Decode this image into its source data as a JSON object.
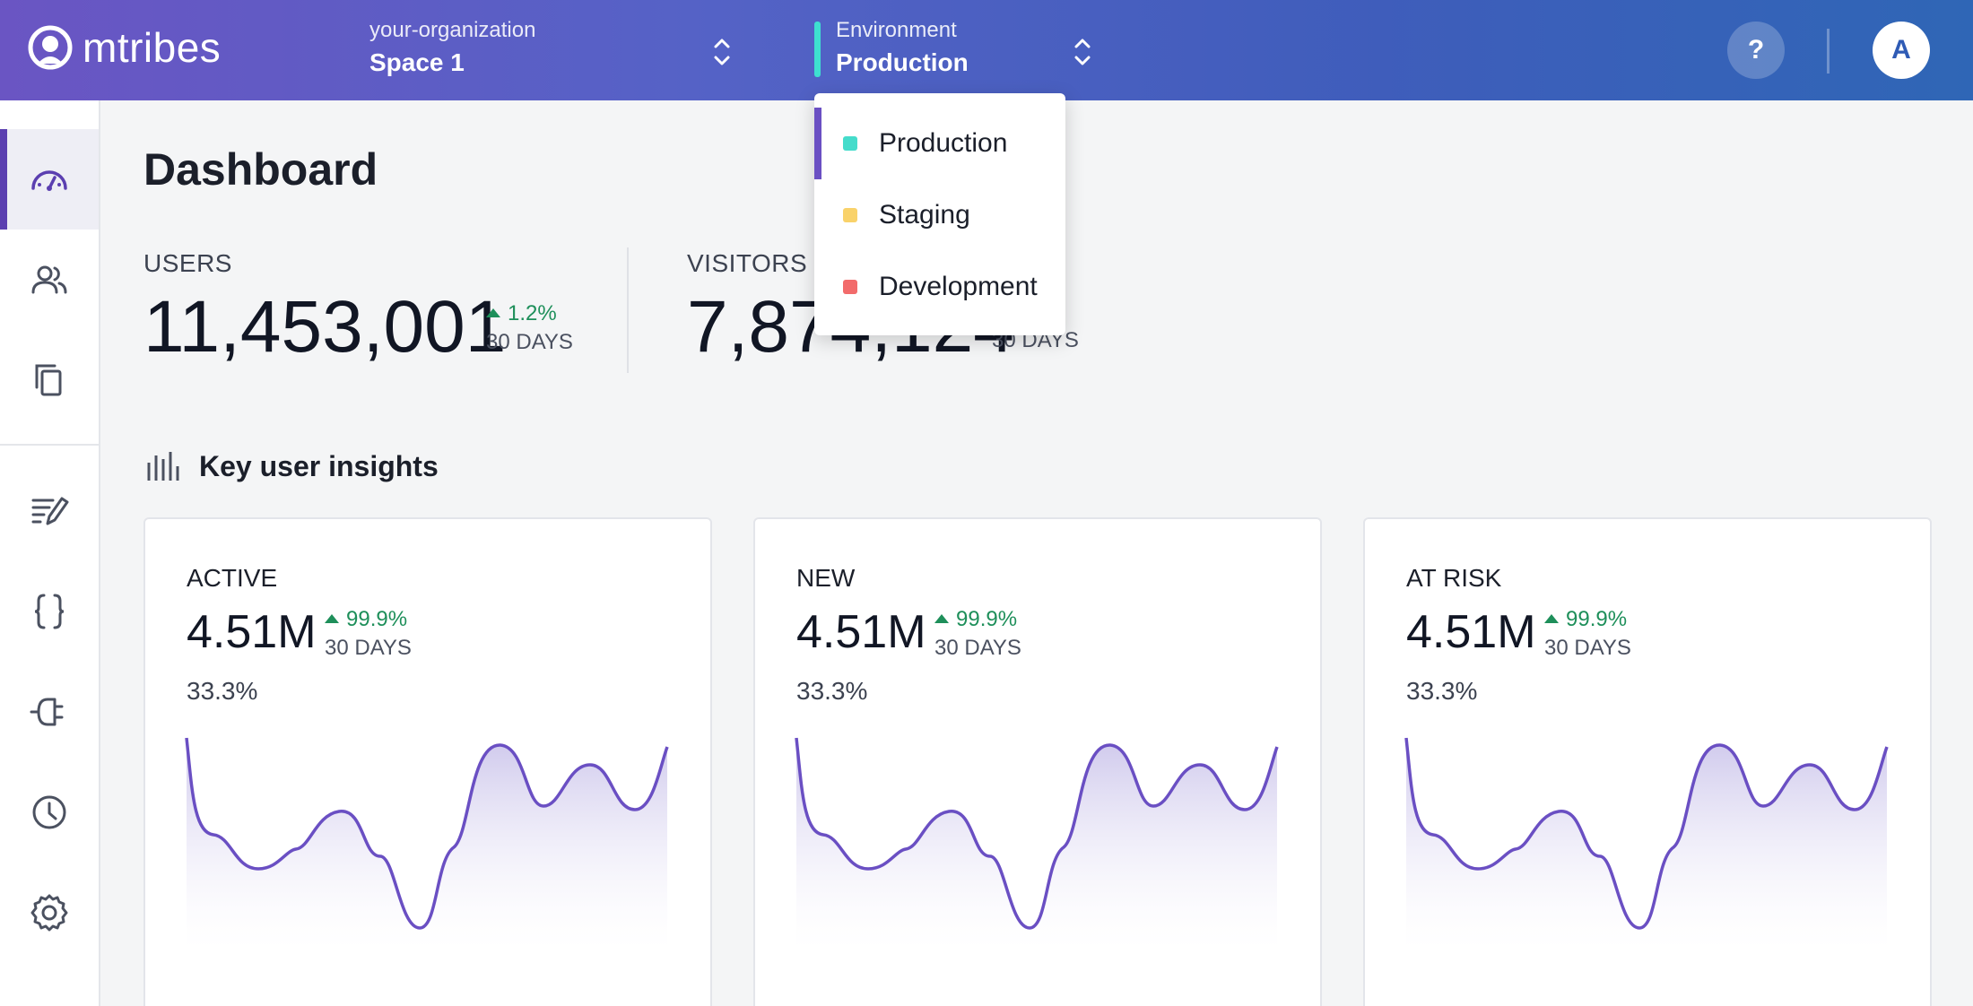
{
  "header": {
    "logo_text": "mtribes",
    "org_selector": {
      "label": "your-organization",
      "value": "Space 1"
    },
    "env_selector": {
      "label": "Environment",
      "value": "Production",
      "accent_color": "#3ee0d0"
    },
    "help_label": "?",
    "avatar_initial": "A"
  },
  "sidebar": {
    "items": [
      {
        "icon": "dashboard-gauge-icon",
        "active": true
      },
      {
        "icon": "users-icon",
        "active": false
      },
      {
        "icon": "copy-icon",
        "active": false
      },
      {
        "icon": "edit-list-icon",
        "active": false
      },
      {
        "icon": "code-braces-icon",
        "active": false
      },
      {
        "icon": "plugin-icon",
        "active": false
      },
      {
        "icon": "history-clock-icon",
        "active": false
      },
      {
        "icon": "settings-gear-icon",
        "active": false
      }
    ]
  },
  "dashboard": {
    "title": "Dashboard",
    "stats": [
      {
        "label": "USERS",
        "value": "11,453,001",
        "delta": "1.2%",
        "period": "30 DAYS"
      },
      {
        "label": "VISITORS",
        "value": "7,874,124",
        "delta": "",
        "period": "30 DAYS"
      }
    ],
    "section_title": "Key user insights",
    "cards": [
      {
        "label": "ACTIVE",
        "value": "4.51M",
        "delta": "99.9%",
        "period": "30 DAYS",
        "percent": "33.3%"
      },
      {
        "label": "NEW",
        "value": "4.51M",
        "delta": "99.9%",
        "period": "30 DAYS",
        "percent": "33.3%"
      },
      {
        "label": "AT RISK",
        "value": "4.51M",
        "delta": "99.9%",
        "period": "30 DAYS",
        "percent": "33.3%"
      }
    ]
  },
  "env_dropdown": {
    "options": [
      {
        "label": "Production",
        "color": "#45dccb",
        "selected": true
      },
      {
        "label": "Staging",
        "color": "#f9d26a",
        "selected": false
      },
      {
        "label": "Development",
        "color": "#f26b6b",
        "selected": false
      }
    ]
  },
  "colors": {
    "brand_purple": "#6a55c3",
    "brand_blue": "#2f66b6",
    "positive": "#1e8f5a",
    "spark_line": "#6a4fc3"
  }
}
